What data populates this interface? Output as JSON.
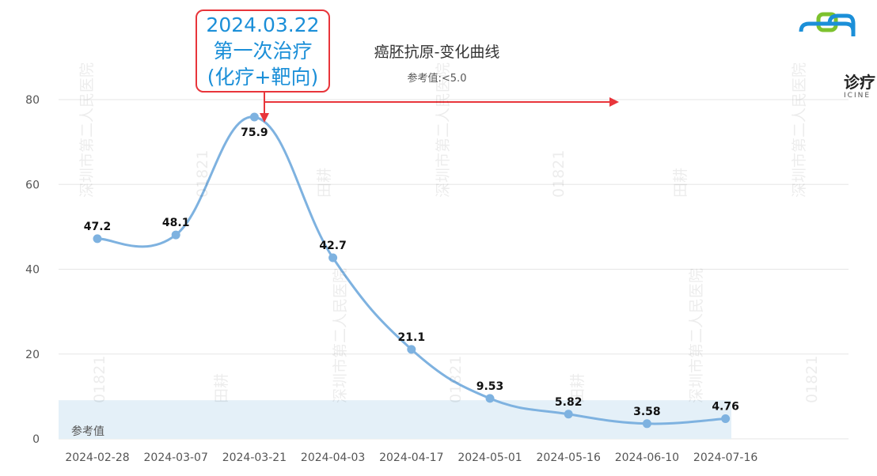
{
  "chart_data": {
    "type": "line",
    "title": "癌胚抗原-变化曲线",
    "subtitle": "参考值:<5.0",
    "categories": [
      "2024-02-28",
      "2024-03-07",
      "2024-03-21",
      "2024-04-03",
      "2024-04-17",
      "2024-05-01",
      "2024-05-16",
      "2024-06-10",
      "2024-07-16"
    ],
    "series": [
      {
        "values": [
          47.2,
          48.1,
          75.9,
          42.7,
          21.1,
          9.53,
          5.82,
          3.58,
          4.76
        ],
        "color": "#7eb2e0"
      }
    ],
    "data_labels": [
      "47.2",
      "48.1",
      "75.9",
      "42.7",
      "21.1",
      "9.53",
      "5.82",
      "3.58",
      "4.76"
    ],
    "ylim": [
      0,
      80
    ],
    "yticks": [
      0,
      20,
      40,
      60,
      80
    ],
    "grid": true,
    "reference_band": {
      "label": "参考值",
      "from": 0,
      "to": 5.0,
      "color": "#e4f0f8"
    },
    "annotation": {
      "lines": [
        "2024.03.22",
        "第一次治疗",
        "(化疗+靶向)"
      ],
      "color": "#1b8fd8",
      "border_color": "#e8353b"
    }
  },
  "logo": {
    "text": "诊疗",
    "subtext": "ICINE"
  },
  "watermark": {
    "lines": [
      "深圳市第二人民医院",
      "01821",
      "田耕"
    ]
  }
}
